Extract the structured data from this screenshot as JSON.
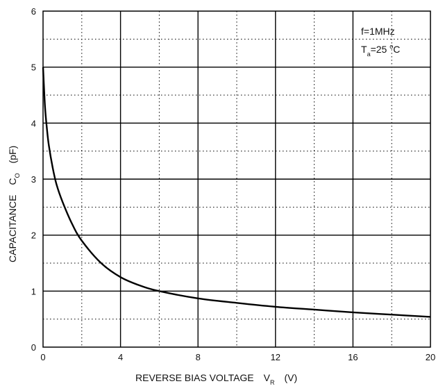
{
  "chart_data": {
    "type": "line",
    "xlabel": "REVERSE BIAS VOLTAGE",
    "xlabel_symbol": "V",
    "xlabel_subscript": "R",
    "xlabel_unit": "(V)",
    "ylabel": "CAPACITANCE",
    "ylabel_symbol": "C",
    "ylabel_subscript": "O",
    "ylabel_unit": "(pF)",
    "xlim": [
      0,
      20
    ],
    "ylim": [
      0,
      6
    ],
    "xticks": [
      "0",
      "4",
      "8",
      "12",
      "16",
      "20"
    ],
    "yticks": [
      "0",
      "1",
      "2",
      "3",
      "4",
      "5",
      "6"
    ],
    "grid": "major solid every 1 pF and 4 V; minor dotted at half steps",
    "annotations": {
      "line1": "f=1MHz",
      "line2_prefix": "T",
      "line2_subscript": "a",
      "line2_value": "=25 ",
      "line2_degree": "o",
      "line2_unit": "C"
    },
    "series": [
      {
        "x": [
          0,
          0.1,
          0.2,
          0.3,
          0.5,
          0.7,
          1,
          1.5,
          2,
          3,
          4,
          5,
          6,
          8,
          10,
          12,
          14,
          16,
          18,
          20
        ],
        "y": [
          5.0,
          4.3,
          3.9,
          3.6,
          3.2,
          2.9,
          2.6,
          2.2,
          1.9,
          1.5,
          1.25,
          1.1,
          1.0,
          0.87,
          0.79,
          0.72,
          0.67,
          0.62,
          0.58,
          0.54
        ]
      }
    ]
  }
}
